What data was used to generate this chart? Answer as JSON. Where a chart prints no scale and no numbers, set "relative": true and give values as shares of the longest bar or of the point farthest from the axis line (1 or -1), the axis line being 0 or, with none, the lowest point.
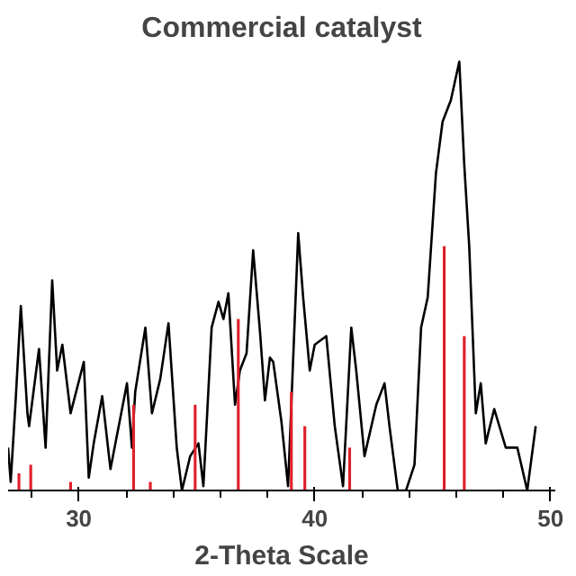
{
  "chart_data": {
    "type": "line",
    "title": "Commercial catalyst",
    "xlabel": "2-Theta Scale",
    "relative": true,
    "xlim": [
      27,
      50.2
    ],
    "xticks": [
      30,
      40,
      50
    ],
    "tick_labels": "x",
    "grid": false,
    "series": [
      {
        "color": "#000000",
        "x": [
          27.0,
          27.11,
          27.32,
          27.54,
          27.82,
          27.89,
          28.31,
          28.59,
          28.87,
          29.08,
          29.3,
          29.65,
          30.21,
          30.42,
          30.63,
          30.99,
          31.34,
          31.69,
          32.04,
          32.25,
          32.39,
          32.82,
          33.1,
          33.45,
          33.8,
          34.15,
          34.37,
          34.72,
          35.07,
          35.28,
          35.63,
          35.92,
          36.13,
          36.34,
          36.62,
          36.83,
          37.11,
          37.39,
          37.68,
          37.89,
          38.1,
          38.24,
          38.59,
          38.87,
          39.3,
          39.51,
          39.79,
          40.0,
          40.49,
          40.85,
          41.2,
          41.55,
          41.76,
          42.11,
          42.61,
          42.96,
          43.17,
          43.52,
          43.87,
          44.23,
          44.51,
          44.79,
          45.14,
          45.42,
          45.77,
          46.13,
          46.34,
          46.55,
          46.83,
          47.04,
          47.25,
          47.61,
          48.1,
          48.59,
          49.01,
          49.37
        ],
        "values": [
          0.1,
          0.02,
          0.21,
          0.43,
          0.18,
          0.15,
          0.33,
          0.1,
          0.49,
          0.28,
          0.34,
          0.18,
          0.3,
          0.03,
          0.11,
          0.22,
          0.05,
          0.15,
          0.25,
          0.1,
          0.23,
          0.38,
          0.18,
          0.26,
          0.39,
          0.1,
          0,
          0.08,
          0.11,
          0.01,
          0.38,
          0.44,
          0.4,
          0.46,
          0.2,
          0.28,
          0.32,
          0.56,
          0.37,
          0.21,
          0.31,
          0.3,
          0.16,
          0.01,
          0.6,
          0.45,
          0.28,
          0.34,
          0.36,
          0.15,
          0.01,
          0.38,
          0.28,
          0.08,
          0.2,
          0.25,
          0.15,
          0,
          0,
          0.06,
          0.38,
          0.45,
          0.74,
          0.86,
          0.91,
          1.0,
          0.76,
          0.57,
          0.18,
          0.25,
          0.11,
          0.19,
          0.1,
          0.1,
          0,
          0.15
        ]
      },
      {
        "type": "bar",
        "color": "#e0202a",
        "x": [
          27.46,
          27.96,
          29.65,
          32.32,
          33.03,
          34.93,
          36.76,
          39.01,
          39.58,
          41.48,
          45.49,
          46.34
        ],
        "values": [
          0.04,
          0.06,
          0.02,
          0.2,
          0.02,
          0.2,
          0.4,
          0.23,
          0.15,
          0.1,
          0.57,
          0.36
        ]
      }
    ]
  }
}
